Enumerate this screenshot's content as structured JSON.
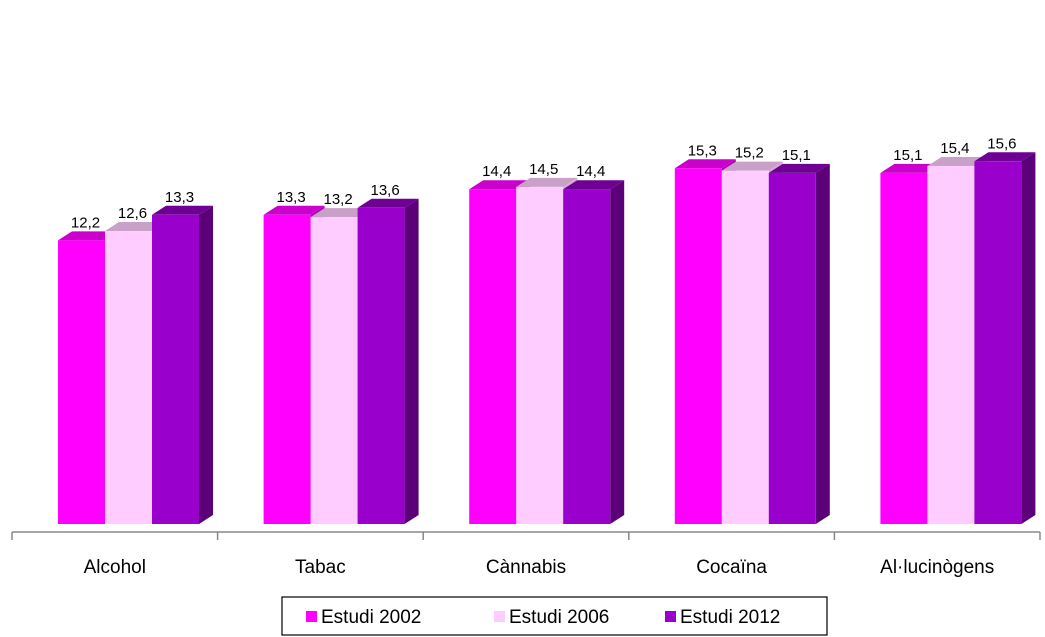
{
  "chart_data": {
    "type": "bar",
    "categories": [
      "Alcohol",
      "Tabac",
      "Cànnabis",
      "Cocaïna",
      "Al·lucinògens"
    ],
    "series": [
      {
        "name": "Estudi  2002",
        "values": [
          12.2,
          13.3,
          14.4,
          15.3,
          15.1
        ],
        "value_labels": [
          "12,2",
          "13,3",
          "14,4",
          "15,3",
          "15,1"
        ]
      },
      {
        "name": "Estudi 2006",
        "values": [
          12.6,
          13.2,
          14.5,
          15.2,
          15.4
        ],
        "value_labels": [
          "12,6",
          "13,2",
          "14,5",
          "15,2",
          "15,4"
        ]
      },
      {
        "name": "Estudi 2012",
        "values": [
          13.3,
          13.6,
          14.4,
          15.1,
          15.6
        ],
        "value_labels": [
          "13,3",
          "13,6",
          "14,4",
          "15,1",
          "15,6"
        ]
      }
    ],
    "colors": {
      "Estudi  2002": {
        "front": "#ff00ff",
        "side": "#b300b3",
        "top": "#cc00cc"
      },
      "Estudi 2006": {
        "front": "#ffccff",
        "side": "#d9a6d9",
        "top": "#c8a0c8"
      },
      "Estudi 2012": {
        "front": "#9900cc",
        "side": "#5c007a",
        "top": "#6e0094"
      }
    },
    "title": "",
    "xlabel": "",
    "ylabel": "",
    "ylim": [
      0,
      16
    ],
    "grid": false,
    "legend": "bottom",
    "three_d": true
  }
}
